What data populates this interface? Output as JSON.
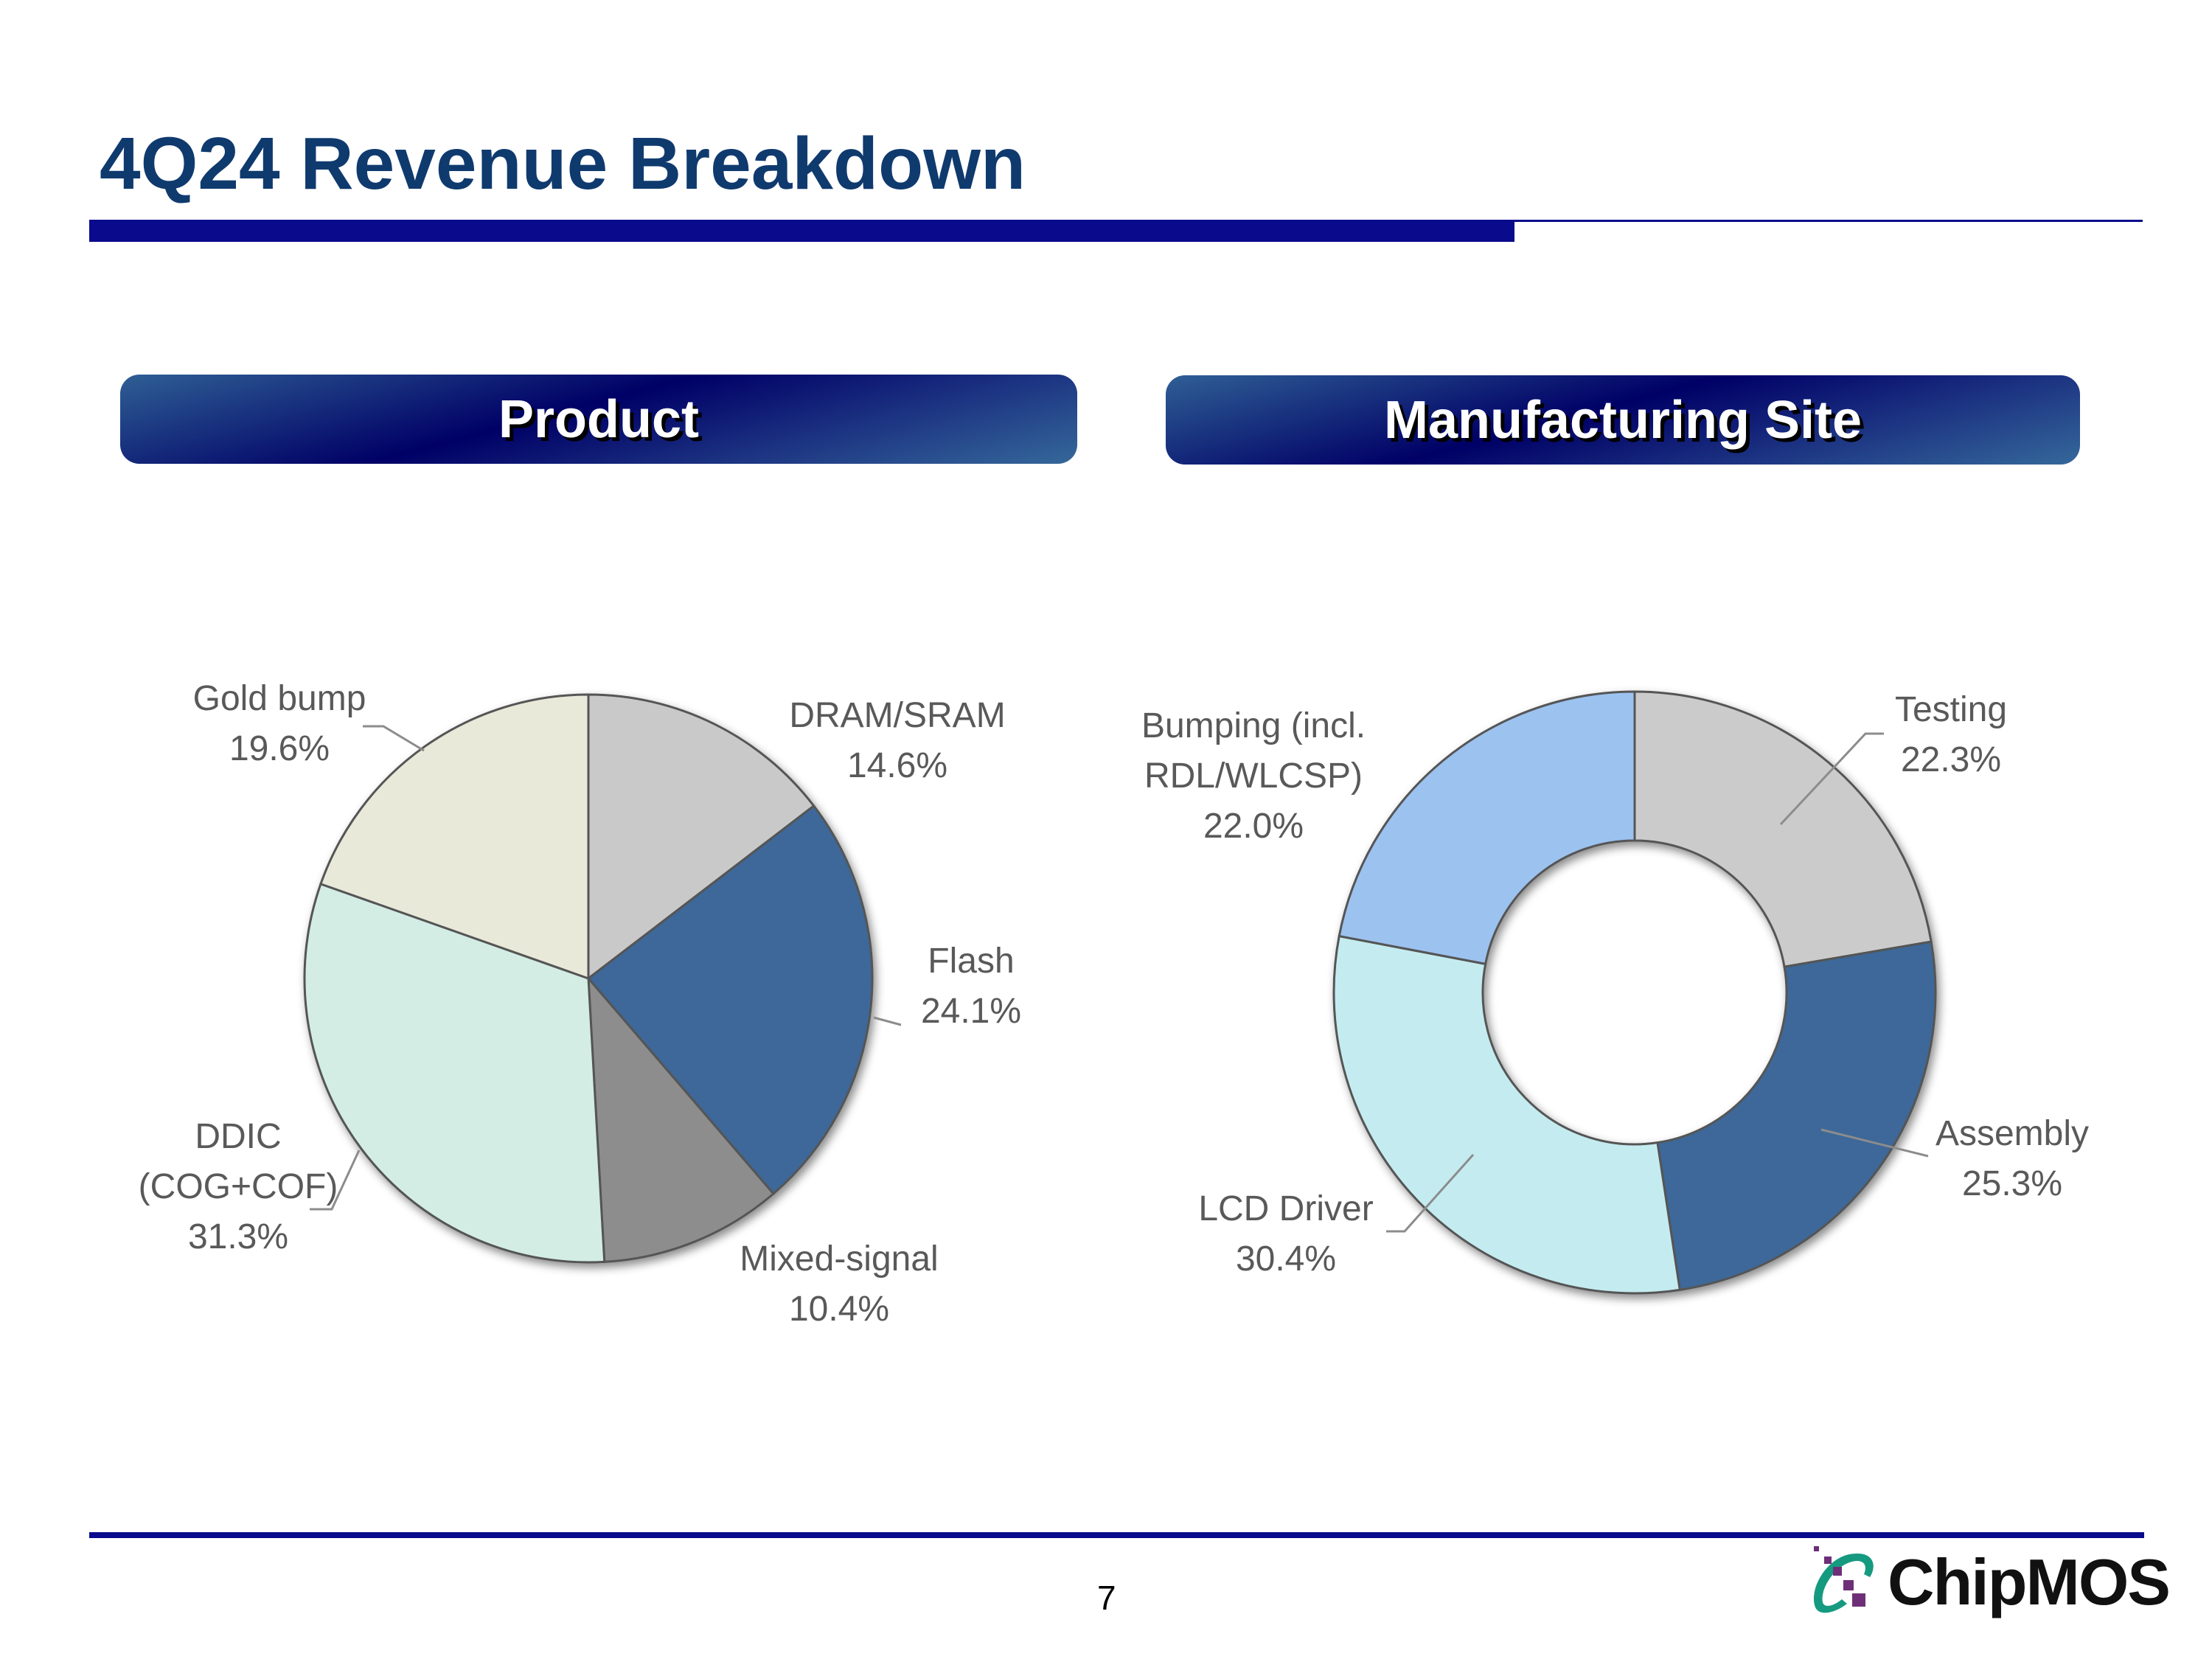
{
  "title": "4Q24 Revenue Breakdown",
  "page_number": "7",
  "logo_text": "ChipMOS",
  "chart_data": [
    {
      "type": "pie",
      "title": "Product",
      "categories": [
        "DRAM/SRAM",
        "Flash",
        "Mixed-signal",
        "DDIC (COG+COF)",
        "Gold bump"
      ],
      "label_lines": [
        [
          "DRAM/SRAM"
        ],
        [
          "Flash"
        ],
        [
          "Mixed-signal"
        ],
        [
          "DDIC",
          "(COG+COF)"
        ],
        [
          "Gold bump"
        ]
      ],
      "values": [
        14.6,
        24.1,
        10.4,
        31.3,
        19.6
      ],
      "value_labels": [
        "14.6%",
        "24.1%",
        "10.4%",
        "31.3%",
        "19.6%"
      ],
      "colors": [
        "#c9c9c9",
        "#3d6899",
        "#8d8d8d",
        "#d3ede5",
        "#e9e9da"
      ]
    },
    {
      "type": "donut",
      "title": "Manufacturing Site",
      "categories": [
        "Testing",
        "Assembly",
        "LCD Driver",
        "Bumping (incl. RDL/WLCSP)"
      ],
      "label_lines": [
        [
          "Testing"
        ],
        [
          "Assembly"
        ],
        [
          "LCD Driver"
        ],
        [
          "Bumping (incl.",
          "RDL/WLCSP)"
        ]
      ],
      "values": [
        22.3,
        25.3,
        30.4,
        22.0
      ],
      "value_labels": [
        "22.3%",
        "25.3%",
        "30.4%",
        "22.0%"
      ],
      "colors": [
        "#cbcbcb",
        "#3d6899",
        "#c4ecf0",
        "#9cc2ef"
      ]
    }
  ]
}
